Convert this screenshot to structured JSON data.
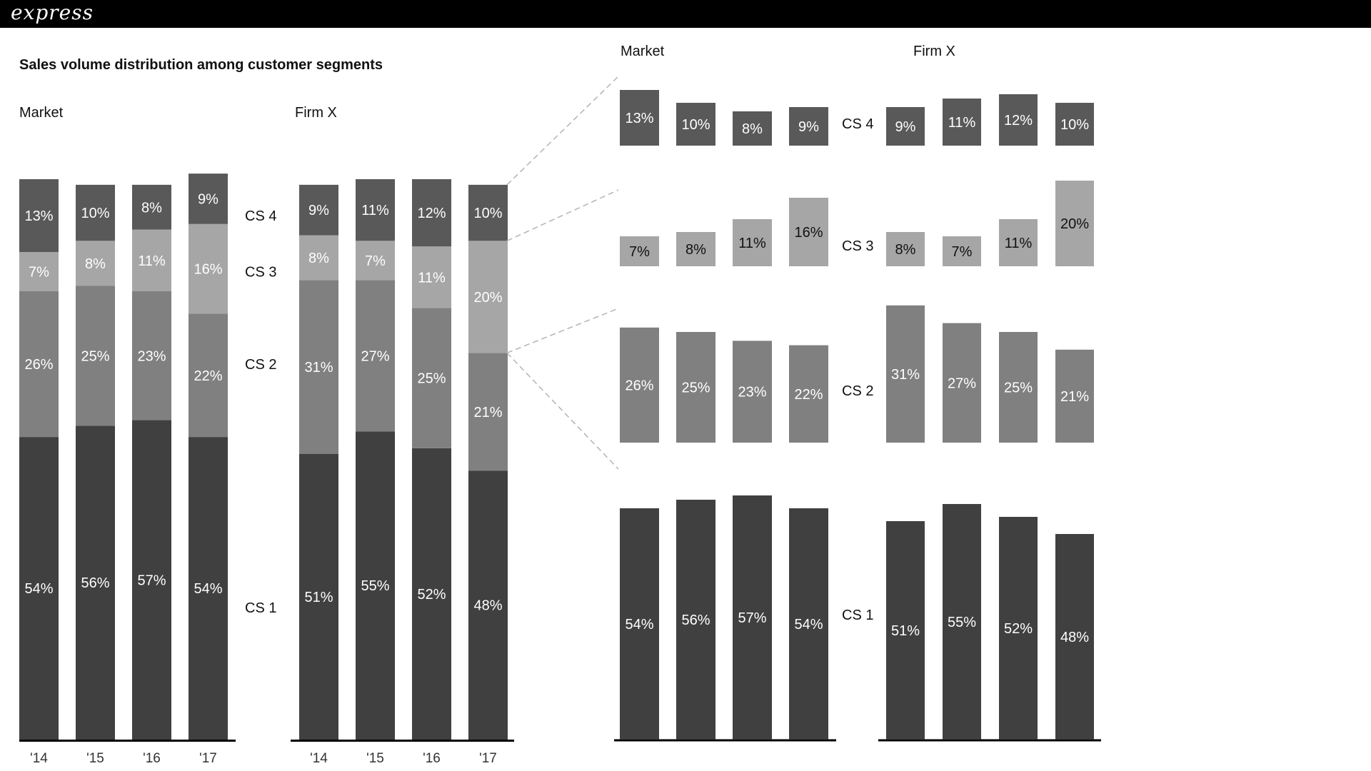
{
  "app": {
    "brand": "express"
  },
  "chart_data": {
    "type": "bar",
    "title": "Sales volume distribution among customer segments",
    "categories": [
      "'14",
      "'15",
      "'16",
      "'17"
    ],
    "segments": [
      "CS 1",
      "CS 2",
      "CS 3",
      "CS 4"
    ],
    "colors": {
      "CS 1": "#404040",
      "CS 2": "#808080",
      "CS 3": "#a6a6a6",
      "CS 4": "#595959"
    },
    "panels": [
      {
        "name": "Market",
        "series": [
          {
            "name": "CS 1",
            "values": [
              54,
              56,
              57,
              54
            ]
          },
          {
            "name": "CS 2",
            "values": [
              26,
              25,
              23,
              22
            ]
          },
          {
            "name": "CS 3",
            "values": [
              7,
              8,
              11,
              16
            ]
          },
          {
            "name": "CS 4",
            "values": [
              13,
              10,
              8,
              9
            ]
          }
        ]
      },
      {
        "name": "Firm X",
        "series": [
          {
            "name": "CS 1",
            "values": [
              51,
              55,
              52,
              48
            ]
          },
          {
            "name": "CS 2",
            "values": [
              31,
              27,
              25,
              21
            ]
          },
          {
            "name": "CS 3",
            "values": [
              8,
              7,
              11,
              20
            ]
          },
          {
            "name": "CS 4",
            "values": [
              9,
              11,
              12,
              10
            ]
          }
        ]
      }
    ]
  }
}
